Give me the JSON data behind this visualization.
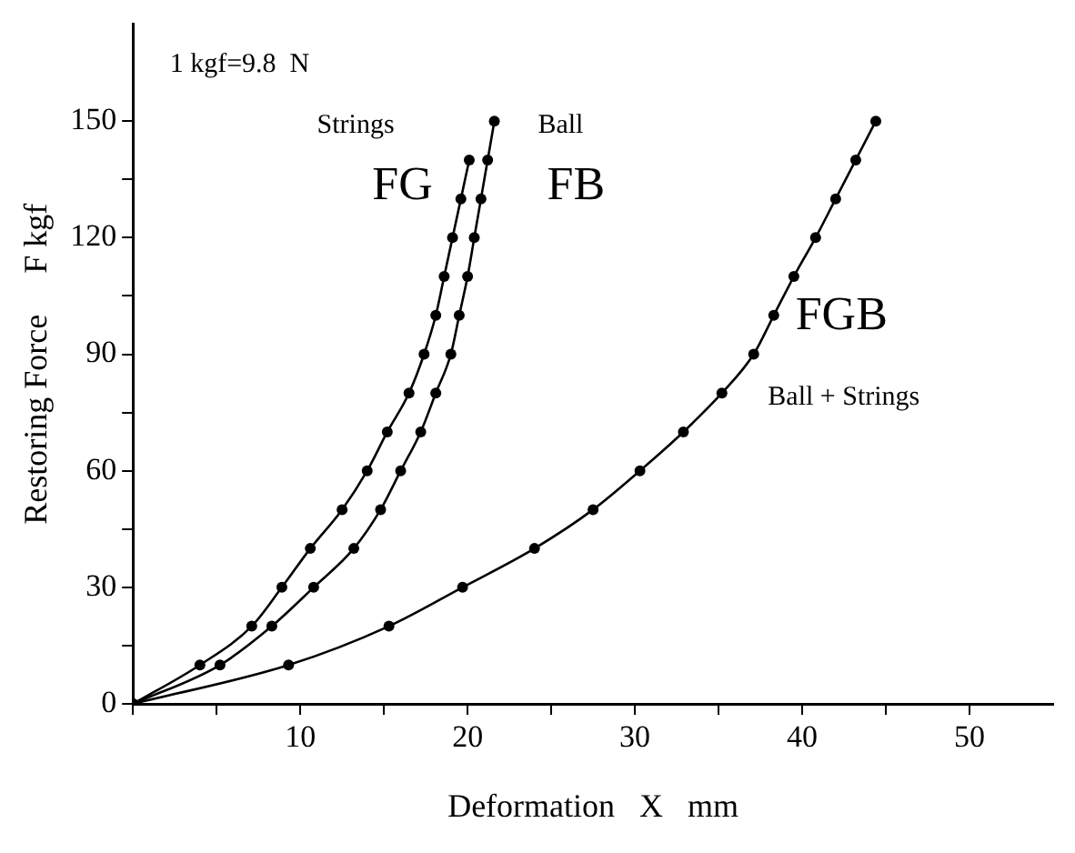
{
  "chart_data": {
    "type": "line",
    "xlabel": "Deformation   X   mm",
    "ylabel": "Restoring Force     F kgf",
    "xlim": [
      0,
      55
    ],
    "ylim": [
      0,
      175
    ],
    "xticks": [
      {
        "value": 0,
        "label": null
      },
      {
        "value": 5,
        "label": null
      },
      10,
      {
        "value": 15,
        "label": null
      },
      20,
      {
        "value": 25,
        "label": null
      },
      30,
      {
        "value": 35,
        "label": null
      },
      40,
      {
        "value": 45,
        "label": null
      },
      50
    ],
    "yticks": [
      0,
      {
        "value": 15,
        "label": null
      },
      30,
      {
        "value": 45,
        "label": null
      },
      60,
      {
        "value": 75,
        "label": null
      },
      90,
      {
        "value": 105,
        "label": null
      },
      120,
      {
        "value": 135,
        "label": null
      },
      150
    ],
    "grid": false,
    "legend": false,
    "marker": "circle",
    "line_style": "solid",
    "annotations": [
      "1 kgf=9.8  N",
      "Strings",
      "Ball",
      "Ball + Strings"
    ],
    "series": [
      {
        "name": "FG",
        "color": "#000000",
        "x": [
          0,
          4.0,
          7.1,
          8.9,
          10.6,
          12.5,
          14.0,
          15.2,
          16.5,
          17.4,
          18.1,
          18.6,
          19.1,
          19.6,
          20.1
        ],
        "values": [
          0,
          10,
          20,
          30,
          40,
          50,
          60,
          70,
          80,
          90,
          100,
          110,
          120,
          130,
          140
        ]
      },
      {
        "name": "FB",
        "color": "#000000",
        "x": [
          0,
          5.2,
          8.3,
          10.8,
          13.2,
          14.8,
          16.0,
          17.2,
          18.1,
          19.0,
          19.5,
          20.0,
          20.4,
          20.8,
          21.2,
          21.6
        ],
        "values": [
          0,
          10,
          20,
          30,
          40,
          50,
          60,
          70,
          80,
          90,
          100,
          110,
          120,
          130,
          140,
          150
        ]
      },
      {
        "name": "FGB",
        "color": "#000000",
        "x": [
          0,
          9.3,
          15.3,
          19.7,
          24.0,
          27.5,
          30.3,
          32.9,
          35.2,
          37.1,
          38.3,
          39.5,
          40.8,
          42.0,
          43.2,
          44.4
        ],
        "values": [
          0,
          10,
          20,
          30,
          40,
          50,
          60,
          70,
          80,
          90,
          100,
          110,
          120,
          130,
          140,
          150
        ]
      }
    ]
  }
}
